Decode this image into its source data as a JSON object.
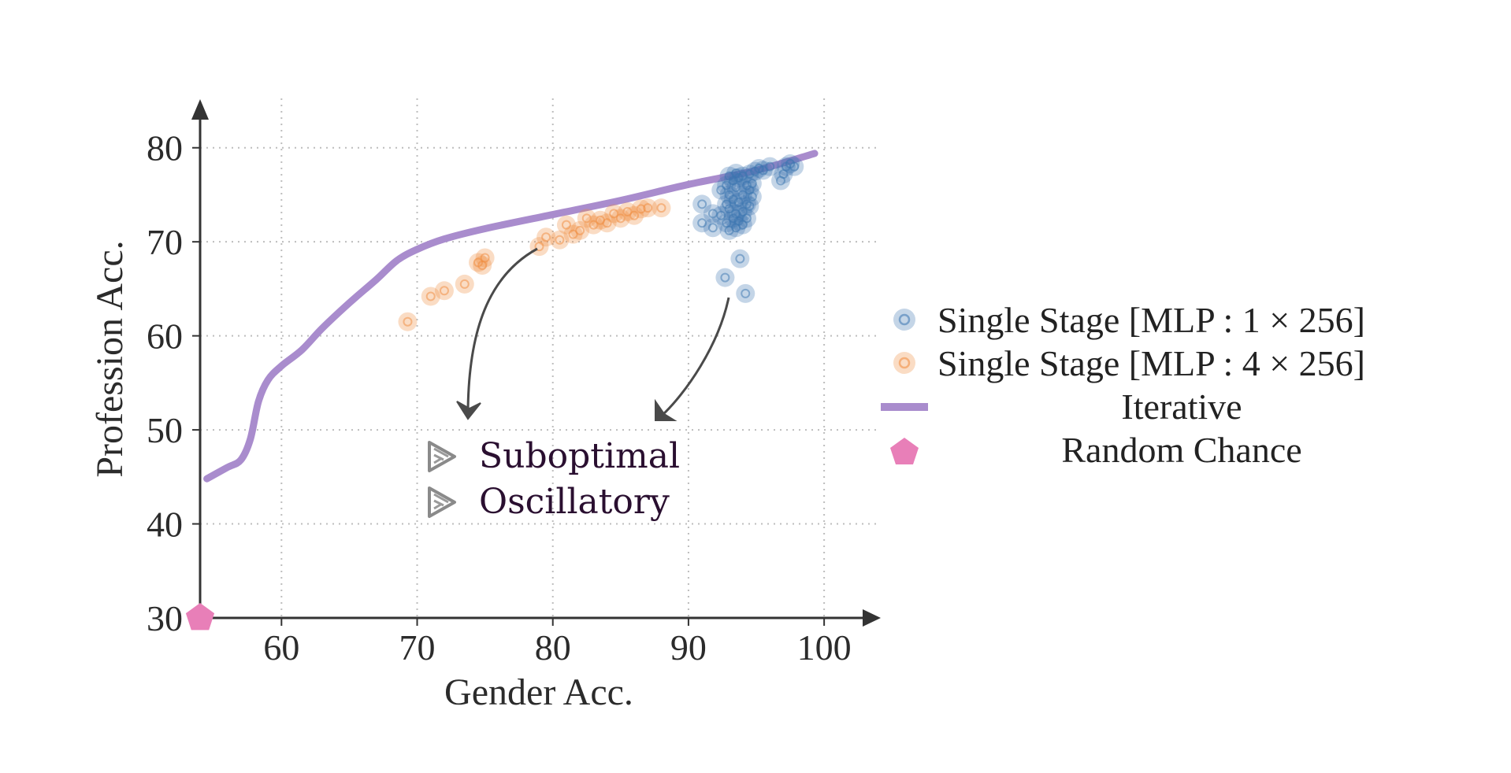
{
  "chart_data": {
    "type": "scatter",
    "xlabel": "Gender Acc.",
    "ylabel": "Profession Acc.",
    "xlim": [
      54,
      104
    ],
    "ylim": [
      30,
      85
    ],
    "xticks": [
      60,
      70,
      80,
      90,
      100
    ],
    "yticks": [
      30,
      40,
      50,
      60,
      70,
      80
    ],
    "grid": "dotted",
    "legend_position": "right",
    "series": [
      {
        "name": "Single Stage [MLP : 1 × 256]",
        "kind": "scatter",
        "color": "#3a75b0",
        "points": [
          [
            91.0,
            74.0
          ],
          [
            91.0,
            72.0
          ],
          [
            91.8,
            73.0
          ],
          [
            91.8,
            71.5
          ],
          [
            92.4,
            75.5
          ],
          [
            92.4,
            72.8
          ],
          [
            92.7,
            66.2
          ],
          [
            92.8,
            76.0
          ],
          [
            92.8,
            74.0
          ],
          [
            92.8,
            72.0
          ],
          [
            93.0,
            77.0
          ],
          [
            93.0,
            75.0
          ],
          [
            93.0,
            73.5
          ],
          [
            93.0,
            71.2
          ],
          [
            93.3,
            76.5
          ],
          [
            93.3,
            74.5
          ],
          [
            93.3,
            72.5
          ],
          [
            93.5,
            77.3
          ],
          [
            93.5,
            75.8
          ],
          [
            93.5,
            73.0
          ],
          [
            93.5,
            71.5
          ],
          [
            93.7,
            76.8
          ],
          [
            93.7,
            74.2
          ],
          [
            93.7,
            72.2
          ],
          [
            93.8,
            68.2
          ],
          [
            94.0,
            77.0
          ],
          [
            94.0,
            75.0
          ],
          [
            94.0,
            73.2
          ],
          [
            94.0,
            71.8
          ],
          [
            94.2,
            64.5
          ],
          [
            94.3,
            76.0
          ],
          [
            94.3,
            74.0
          ],
          [
            94.3,
            72.5
          ],
          [
            94.5,
            77.2
          ],
          [
            94.5,
            75.5
          ],
          [
            94.5,
            73.8
          ],
          [
            94.7,
            76.2
          ],
          [
            94.7,
            74.8
          ],
          [
            94.9,
            77.5
          ],
          [
            95.2,
            77.8
          ],
          [
            95.5,
            77.6
          ],
          [
            96.0,
            78.0
          ],
          [
            96.8,
            76.5
          ],
          [
            97.0,
            77.2
          ],
          [
            97.2,
            78.0
          ],
          [
            97.5,
            78.3
          ],
          [
            97.8,
            78.0
          ]
        ]
      },
      {
        "name": "Single Stage [MLP : 4 × 256]",
        "kind": "scatter",
        "color": "#f08a3c",
        "points": [
          [
            69.3,
            61.5
          ],
          [
            71.0,
            64.2
          ],
          [
            72.0,
            64.8
          ],
          [
            73.5,
            65.5
          ],
          [
            74.5,
            67.8
          ],
          [
            75.0,
            68.3
          ],
          [
            74.8,
            67.5
          ],
          [
            79.0,
            69.5
          ],
          [
            79.5,
            70.5
          ],
          [
            80.5,
            70.2
          ],
          [
            81.0,
            71.8
          ],
          [
            81.5,
            70.8
          ],
          [
            82.0,
            71.2
          ],
          [
            82.5,
            72.5
          ],
          [
            83.0,
            71.8
          ],
          [
            83.5,
            72.3
          ],
          [
            84.0,
            72.0
          ],
          [
            84.5,
            73.0
          ],
          [
            85.0,
            72.5
          ],
          [
            85.5,
            73.2
          ],
          [
            86.0,
            72.8
          ],
          [
            86.5,
            73.5
          ],
          [
            87.0,
            73.6
          ],
          [
            88.0,
            73.6
          ]
        ]
      },
      {
        "name": "Iterative",
        "kind": "line",
        "color": "#a98ccd",
        "x": [
          54.5,
          56.0,
          57.0,
          57.7,
          58.3,
          59.0,
          60.0,
          61.5,
          63.0,
          65.0,
          67.0,
          68.5,
          70.0,
          72.0,
          75.0,
          80.0,
          85.0,
          90.0,
          95.0,
          99.3
        ],
        "y": [
          44.8,
          46.0,
          46.8,
          49.0,
          53.0,
          55.3,
          56.8,
          58.5,
          60.8,
          63.5,
          66.0,
          68.0,
          69.2,
          70.3,
          71.4,
          72.9,
          74.4,
          76.1,
          77.6,
          79.4
        ]
      },
      {
        "name": "Random Chance",
        "kind": "marker",
        "color": "#e87fb8",
        "points": [
          [
            54.0,
            30.0
          ]
        ]
      }
    ],
    "annotations": [
      {
        "label": "Suboptimal",
        "target_series": "Single Stage [MLP : 4 × 256]"
      },
      {
        "label": "Oscillatory",
        "target_series": "Single Stage [MLP : 1 × 256]"
      }
    ]
  },
  "colors": {
    "axis": "#333333",
    "grid": "#bdbdbd",
    "arrow": "#4a4a4a",
    "annotation_text": "#2a0f30"
  }
}
